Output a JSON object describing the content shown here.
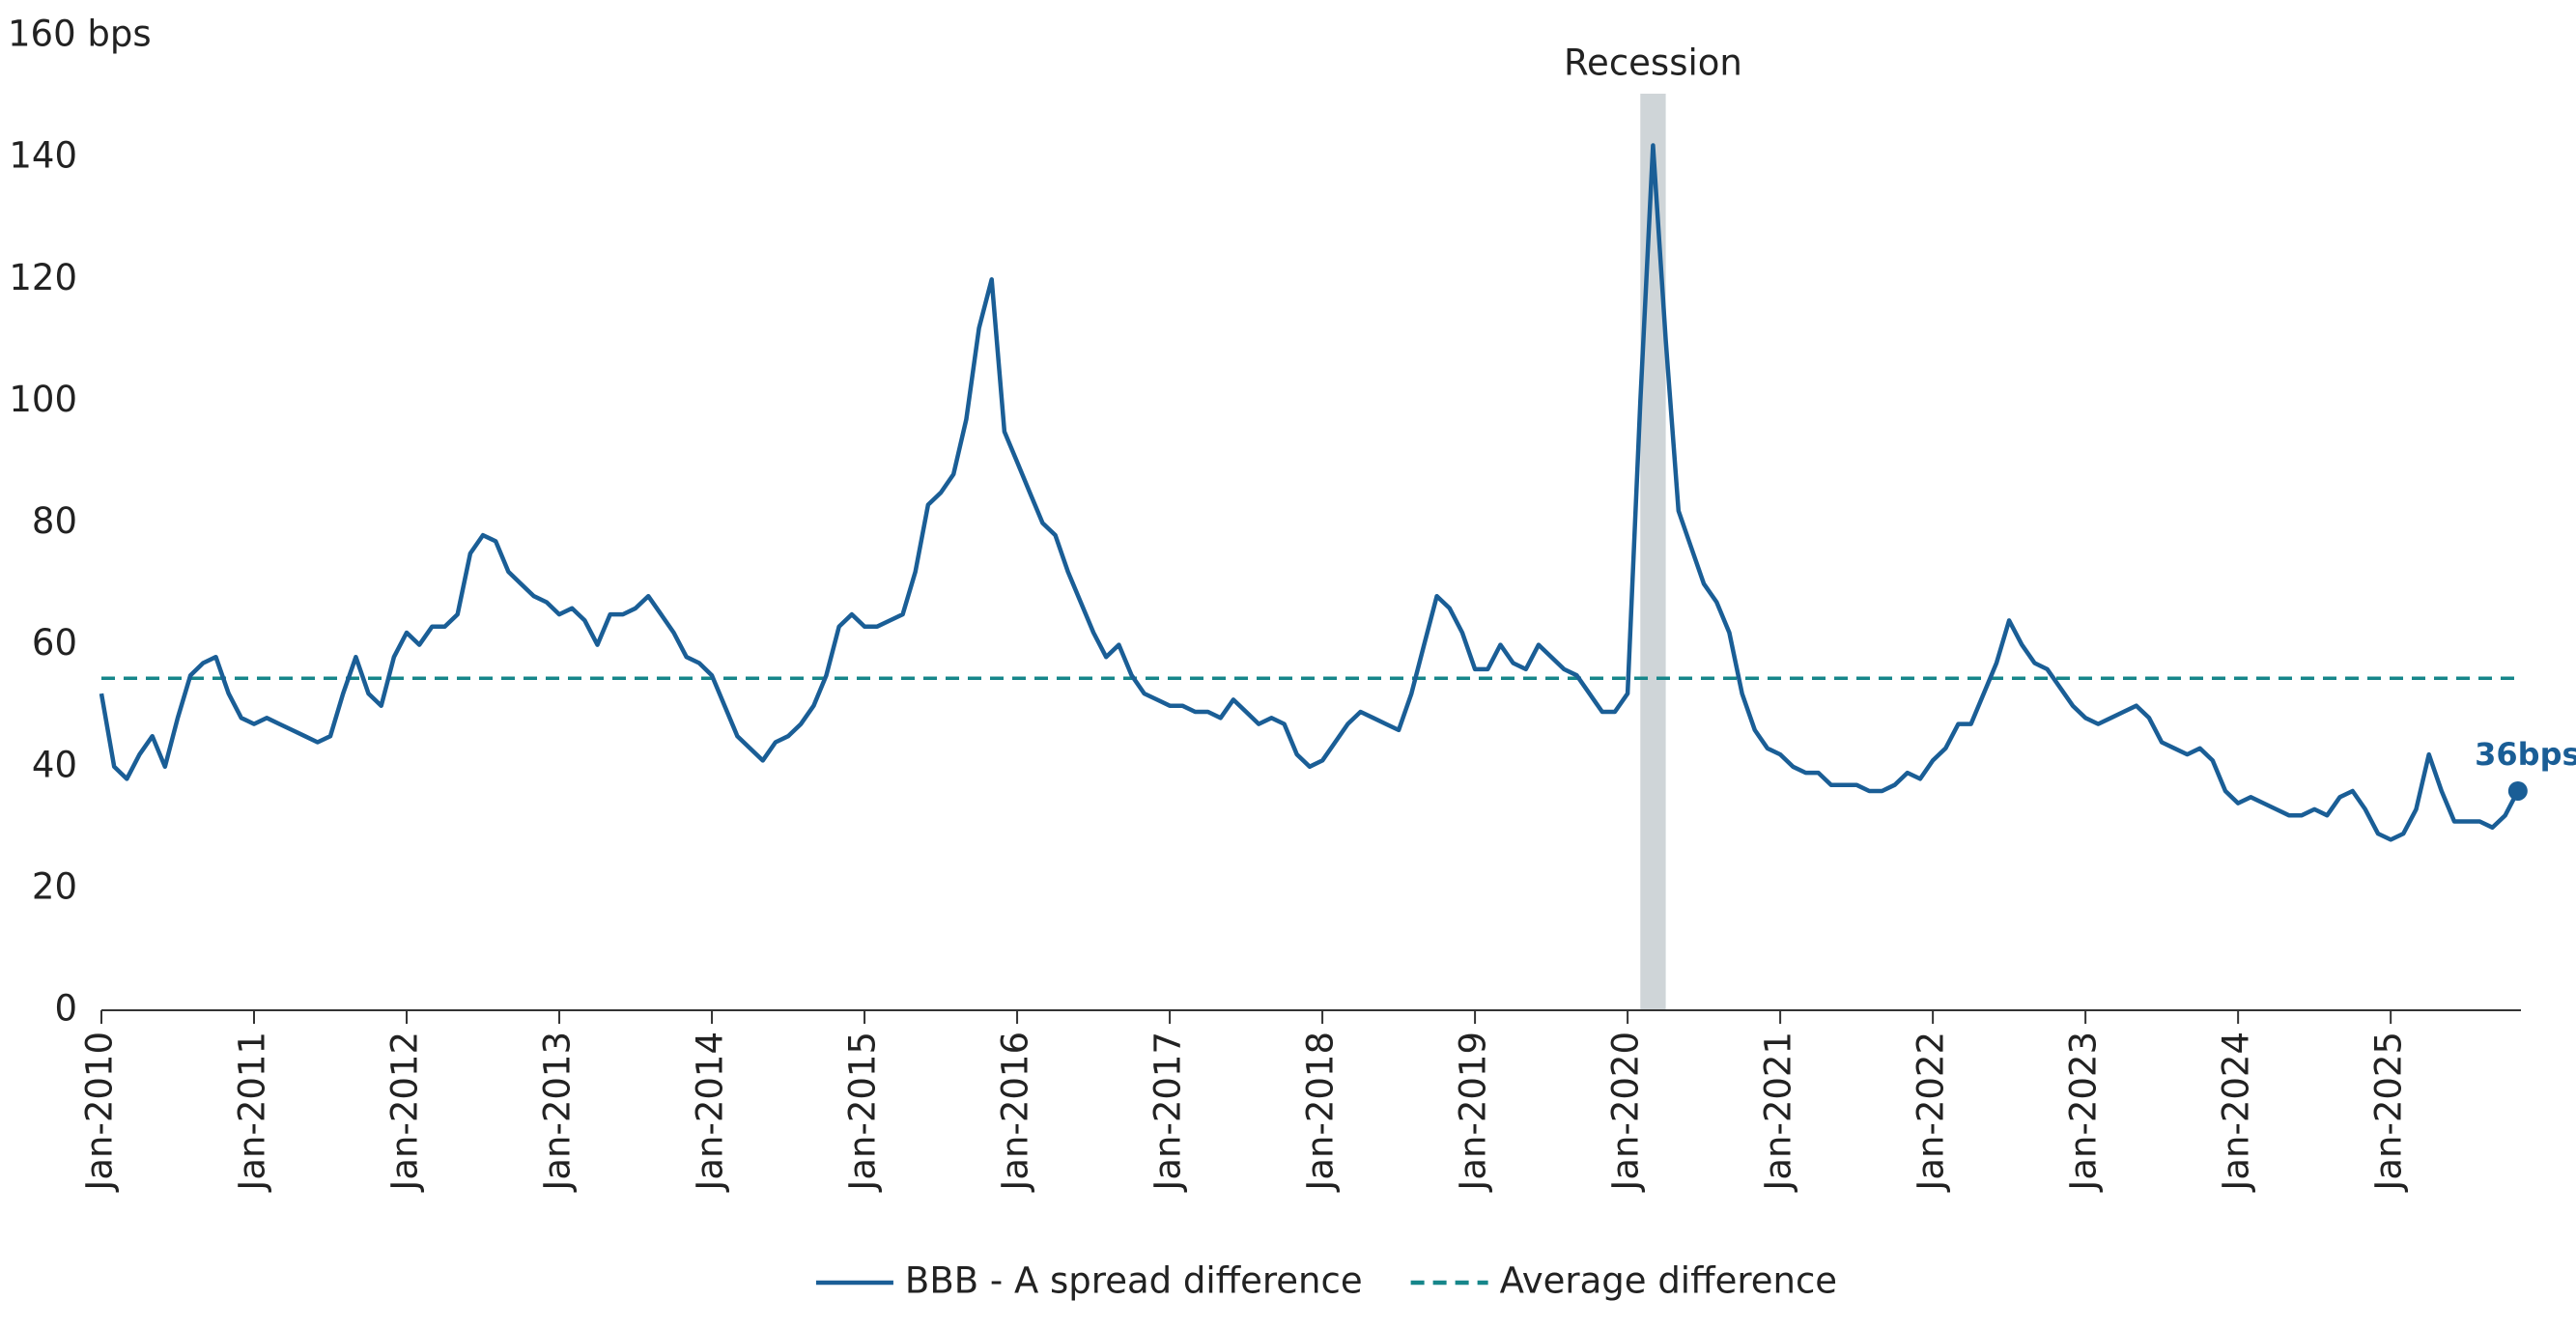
{
  "chart_data": {
    "type": "line",
    "ylim": [
      0,
      160
    ],
    "yticks": [
      0,
      20,
      40,
      60,
      80,
      100,
      120,
      140,
      {
        "value": 160,
        "label": "160 bps"
      }
    ],
    "xlim": [
      "2010-01",
      "2025-12"
    ],
    "xticks": [
      {
        "value": "2010-01",
        "label": "Jan-2010"
      },
      {
        "value": "2011-01",
        "label": "Jan-2011"
      },
      {
        "value": "2012-01",
        "label": "Jan-2012"
      },
      {
        "value": "2013-01",
        "label": "Jan-2013"
      },
      {
        "value": "2014-01",
        "label": "Jan-2014"
      },
      {
        "value": "2015-01",
        "label": "Jan-2015"
      },
      {
        "value": "2016-01",
        "label": "Jan-2016"
      },
      {
        "value": "2017-01",
        "label": "Jan-2017"
      },
      {
        "value": "2018-01",
        "label": "Jan-2018"
      },
      {
        "value": "2019-01",
        "label": "Jan-2019"
      },
      {
        "value": "2020-01",
        "label": "Jan-2020"
      },
      {
        "value": "2021-01",
        "label": "Jan-2021"
      },
      {
        "value": "2022-01",
        "label": "Jan-2022"
      },
      {
        "value": "2023-01",
        "label": "Jan-2023"
      },
      {
        "value": "2024-01",
        "label": "Jan-2024"
      },
      {
        "value": "2025-01",
        "label": "Jan-2025"
      }
    ],
    "grid": false,
    "legend": "bottom",
    "x": [
      "2010-01",
      "2010-02",
      "2010-03",
      "2010-04",
      "2010-05",
      "2010-06",
      "2010-07",
      "2010-08",
      "2010-09",
      "2010-10",
      "2010-11",
      "2010-12",
      "2011-01",
      "2011-02",
      "2011-03",
      "2011-04",
      "2011-05",
      "2011-06",
      "2011-07",
      "2011-08",
      "2011-09",
      "2011-10",
      "2011-11",
      "2011-12",
      "2012-01",
      "2012-02",
      "2012-03",
      "2012-04",
      "2012-05",
      "2012-06",
      "2012-07",
      "2012-08",
      "2012-09",
      "2012-10",
      "2012-11",
      "2012-12",
      "2013-01",
      "2013-02",
      "2013-03",
      "2013-04",
      "2013-05",
      "2013-06",
      "2013-07",
      "2013-08",
      "2013-09",
      "2013-10",
      "2013-11",
      "2013-12",
      "2014-01",
      "2014-02",
      "2014-03",
      "2014-04",
      "2014-05",
      "2014-06",
      "2014-07",
      "2014-08",
      "2014-09",
      "2014-10",
      "2014-11",
      "2014-12",
      "2015-01",
      "2015-02",
      "2015-03",
      "2015-04",
      "2015-05",
      "2015-06",
      "2015-07",
      "2015-08",
      "2015-09",
      "2015-10",
      "2015-11",
      "2015-12",
      "2016-01",
      "2016-02",
      "2016-03",
      "2016-04",
      "2016-05",
      "2016-06",
      "2016-07",
      "2016-08",
      "2016-09",
      "2016-10",
      "2016-11",
      "2016-12",
      "2017-01",
      "2017-02",
      "2017-03",
      "2017-04",
      "2017-05",
      "2017-06",
      "2017-07",
      "2017-08",
      "2017-09",
      "2017-10",
      "2017-11",
      "2017-12",
      "2018-01",
      "2018-02",
      "2018-03",
      "2018-04",
      "2018-05",
      "2018-06",
      "2018-07",
      "2018-08",
      "2018-09",
      "2018-10",
      "2018-11",
      "2018-12",
      "2019-01",
      "2019-02",
      "2019-03",
      "2019-04",
      "2019-05",
      "2019-06",
      "2019-07",
      "2019-08",
      "2019-09",
      "2019-10",
      "2019-11",
      "2019-12",
      "2020-01",
      "2020-02",
      "2020-03",
      "2020-04",
      "2020-05",
      "2020-06",
      "2020-07",
      "2020-08",
      "2020-09",
      "2020-10",
      "2020-11",
      "2020-12",
      "2021-01",
      "2021-02",
      "2021-03",
      "2021-04",
      "2021-05",
      "2021-06",
      "2021-07",
      "2021-08",
      "2021-09",
      "2021-10",
      "2021-11",
      "2021-12",
      "2022-01",
      "2022-02",
      "2022-03",
      "2022-04",
      "2022-05",
      "2022-06",
      "2022-07",
      "2022-08",
      "2022-09",
      "2022-10",
      "2022-11",
      "2022-12",
      "2023-01",
      "2023-02",
      "2023-03",
      "2023-04",
      "2023-05",
      "2023-06",
      "2023-07",
      "2023-08",
      "2023-09",
      "2023-10",
      "2023-11",
      "2023-12",
      "2024-01",
      "2024-02",
      "2024-03",
      "2024-04",
      "2024-05",
      "2024-06",
      "2024-07",
      "2024-08",
      "2024-09",
      "2024-10",
      "2024-11",
      "2024-12",
      "2025-01",
      "2025-02",
      "2025-03",
      "2025-04",
      "2025-05",
      "2025-06",
      "2025-07",
      "2025-08",
      "2025-09",
      "2025-10",
      "2025-11"
    ],
    "series": [
      {
        "name": "BBB - A spread difference",
        "color": "#1a5e96",
        "values": [
          52,
          40,
          38,
          42,
          45,
          40,
          48,
          55,
          57,
          58,
          52,
          48,
          47,
          48,
          47,
          46,
          45,
          44,
          45,
          52,
          58,
          52,
          50,
          58,
          62,
          60,
          63,
          63,
          65,
          75,
          78,
          77,
          72,
          70,
          68,
          67,
          65,
          66,
          64,
          60,
          65,
          65,
          66,
          68,
          65,
          62,
          58,
          57,
          55,
          50,
          45,
          43,
          41,
          44,
          45,
          47,
          50,
          55,
          63,
          65,
          63,
          63,
          64,
          65,
          72,
          83,
          85,
          88,
          97,
          112,
          120,
          95,
          90,
          85,
          80,
          78,
          72,
          67,
          62,
          58,
          60,
          55,
          52,
          51,
          50,
          50,
          49,
          49,
          48,
          51,
          49,
          47,
          48,
          47,
          42,
          40,
          41,
          44,
          47,
          49,
          48,
          47,
          46,
          52,
          60,
          68,
          66,
          62,
          56,
          56,
          60,
          57,
          56,
          60,
          58,
          56,
          55,
          52,
          49,
          49,
          52,
          100,
          142,
          110,
          82,
          76,
          70,
          67,
          62,
          52,
          46,
          43,
          42,
          40,
          39,
          39,
          37,
          37,
          37,
          36,
          36,
          37,
          39,
          38,
          41,
          43,
          47,
          47,
          52,
          57,
          64,
          60,
          57,
          56,
          53,
          50,
          48,
          47,
          48,
          49,
          50,
          48,
          44,
          43,
          42,
          43,
          41,
          36,
          34,
          35,
          34,
          33,
          32,
          32,
          33,
          32,
          35,
          36,
          33,
          29,
          28,
          29,
          33,
          42,
          36,
          31,
          31,
          31,
          30,
          32,
          36
        ]
      }
    ],
    "reference_line": {
      "name": "Average difference",
      "value": 54.5,
      "color": "#16868a",
      "dashed": true
    },
    "shaded_region": {
      "start": "2020-02",
      "end": "2020-04",
      "label": "Recession",
      "color": "#cfd5d8"
    },
    "end_label": {
      "value": 36,
      "label": "36bps"
    }
  }
}
